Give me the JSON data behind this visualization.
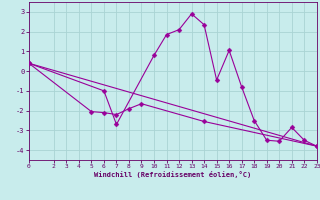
{
  "xlabel": "Windchill (Refroidissement éolien,°C)",
  "background_color": "#c8ecec",
  "grid_color": "#aad4d4",
  "line_color": "#990099",
  "spine_color": "#660066",
  "xlim": [
    0,
    23
  ],
  "ylim": [
    -4.5,
    3.5
  ],
  "yticks": [
    -4,
    -3,
    -2,
    -1,
    0,
    1,
    2,
    3
  ],
  "xticks": [
    0,
    2,
    3,
    4,
    5,
    6,
    7,
    8,
    9,
    10,
    11,
    12,
    13,
    14,
    15,
    16,
    17,
    18,
    19,
    20,
    21,
    22,
    23
  ],
  "series1_x": [
    0,
    6,
    7,
    10,
    11,
    12,
    13,
    14,
    15,
    16,
    17,
    18,
    19,
    20,
    21,
    22,
    23
  ],
  "series1_y": [
    0.4,
    -1.0,
    -2.7,
    0.8,
    1.85,
    2.1,
    2.9,
    2.35,
    -0.45,
    1.05,
    -0.8,
    -2.5,
    -3.5,
    -3.55,
    -2.85,
    -3.5,
    -3.8
  ],
  "series2_x": [
    0,
    5,
    6,
    7,
    8,
    9,
    14,
    23
  ],
  "series2_y": [
    0.4,
    -2.05,
    -2.1,
    -2.2,
    -1.9,
    -1.65,
    -2.55,
    -3.8
  ],
  "series3_x": [
    0,
    23
  ],
  "series3_y": [
    0.4,
    -3.8
  ]
}
